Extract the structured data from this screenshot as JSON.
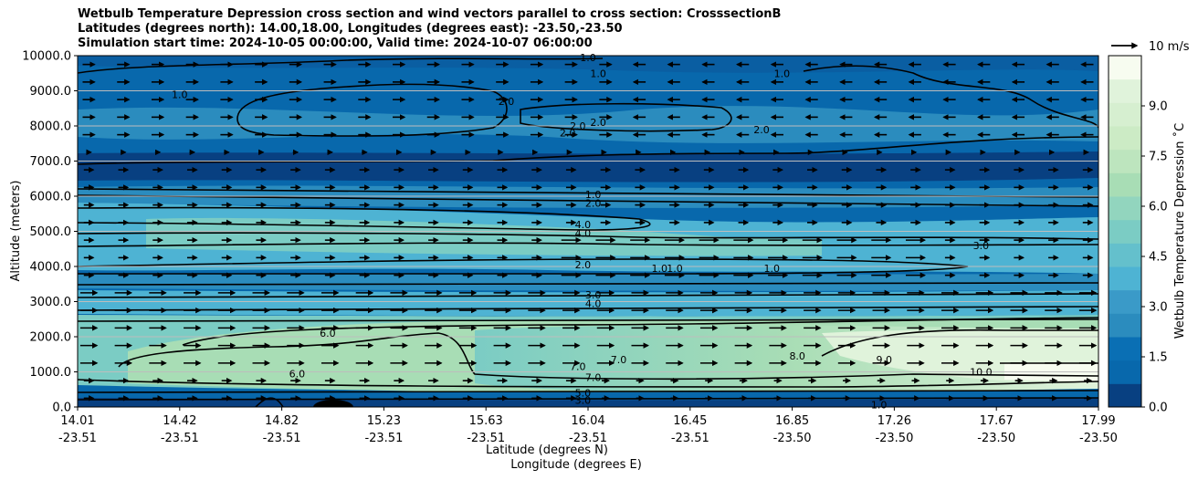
{
  "chart_data": {
    "type": "contour",
    "title_lines": [
      "Wetbulb Temperature Depression cross section and wind vectors parallel to cross section: CrosssectionB",
      "Latitudes (degrees north): 14.00,18.00, Longitudes (degrees east): -23.50,-23.50",
      "Simulation start time: 2024-10-05 00:00:00, Valid time: 2024-10-07 06:00:00"
    ],
    "ylabel": "Altitude (meters)",
    "xlabel_lat": "Latitude (degrees N)",
    "xlabel_lon": "Longitude (degrees E)",
    "ylim": [
      0,
      10000
    ],
    "yticks": [
      "0.0",
      "1000.0",
      "2000.0",
      "3000.0",
      "4000.0",
      "5000.0",
      "6000.0",
      "7000.0",
      "8000.0",
      "9000.0",
      "10000.0"
    ],
    "xticks": [
      {
        "lat": "14.01",
        "lon": "-23.51"
      },
      {
        "lat": "14.42",
        "lon": "-23.51"
      },
      {
        "lat": "14.82",
        "lon": "-23.51"
      },
      {
        "lat": "15.23",
        "lon": "-23.51"
      },
      {
        "lat": "15.63",
        "lon": "-23.51"
      },
      {
        "lat": "16.04",
        "lon": "-23.51"
      },
      {
        "lat": "16.45",
        "lon": "-23.51"
      },
      {
        "lat": "16.85",
        "lon": "-23.50"
      },
      {
        "lat": "17.26",
        "lon": "-23.50"
      },
      {
        "lat": "17.67",
        "lon": "-23.50"
      },
      {
        "lat": "17.99",
        "lon": "-23.50"
      }
    ],
    "colorbar": {
      "label": "Wetbulb Temperature Depression ˚C",
      "ticks": [
        "0.0",
        "1.5",
        "3.0",
        "4.5",
        "6.0",
        "7.5",
        "9.0"
      ],
      "range": [
        0,
        10.5
      ]
    },
    "quiver_key": "10 m/s",
    "contour_labels": [
      {
        "text": "1.0",
        "x": 0.5,
        "z": 9950
      },
      {
        "text": "1.0",
        "x": 0.51,
        "z": 9500
      },
      {
        "text": "1.0",
        "x": 0.1,
        "z": 8900
      },
      {
        "text": "1.0",
        "x": 0.69,
        "z": 9500
      },
      {
        "text": "2.0",
        "x": 0.42,
        "z": 8700
      },
      {
        "text": "2.0",
        "x": 0.49,
        "z": 8000
      },
      {
        "text": "2.0",
        "x": 0.51,
        "z": 8100
      },
      {
        "text": "2.0",
        "x": 0.48,
        "z": 7800
      },
      {
        "text": "2.0",
        "x": 0.67,
        "z": 7900
      },
      {
        "text": "1.0",
        "x": 0.505,
        "z": 6050
      },
      {
        "text": "2.0",
        "x": 0.505,
        "z": 5800
      },
      {
        "text": "4.0",
        "x": 0.495,
        "z": 5200
      },
      {
        "text": "4.0",
        "x": 0.495,
        "z": 4950
      },
      {
        "text": "3.0",
        "x": 0.885,
        "z": 4600
      },
      {
        "text": "2.0",
        "x": 0.495,
        "z": 4050
      },
      {
        "text": "1.0",
        "x": 0.57,
        "z": 3950
      },
      {
        "text": "1.0",
        "x": 0.585,
        "z": 3950
      },
      {
        "text": "1.0",
        "x": 0.68,
        "z": 3950
      },
      {
        "text": "3.0",
        "x": 0.505,
        "z": 3200
      },
      {
        "text": "4.0",
        "x": 0.505,
        "z": 2950
      },
      {
        "text": "6.0",
        "x": 0.245,
        "z": 2100
      },
      {
        "text": "7.0",
        "x": 0.49,
        "z": 1150
      },
      {
        "text": "7.0",
        "x": 0.53,
        "z": 1350
      },
      {
        "text": "7.0",
        "x": 0.505,
        "z": 850
      },
      {
        "text": "8.0",
        "x": 0.705,
        "z": 1450
      },
      {
        "text": "9.0",
        "x": 0.79,
        "z": 1350
      },
      {
        "text": "10.0",
        "x": 0.885,
        "z": 1000
      },
      {
        "text": "6.0",
        "x": 0.215,
        "z": 950
      },
      {
        "text": "5.0",
        "x": 0.495,
        "z": 400
      },
      {
        "text": "3.0",
        "x": 0.495,
        "z": 200
      },
      {
        "text": "1.0",
        "x": 0.785,
        "z": 60
      }
    ]
  }
}
